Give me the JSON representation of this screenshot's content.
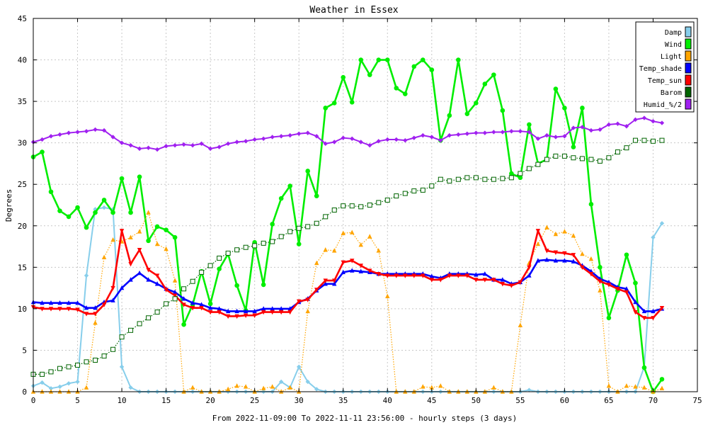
{
  "chart_data": {
    "type": "line",
    "title": "Weather in Essex",
    "xlabel": "From 2022-11-09:00 To 2022-11-11 23:56:00 - hourly steps (3 days)",
    "ylabel": "Degrees",
    "xlim": [
      0,
      75
    ],
    "ylim": [
      0,
      45
    ],
    "xticks": [
      0,
      5,
      10,
      15,
      20,
      25,
      30,
      35,
      40,
      45,
      50,
      55,
      60,
      65,
      70,
      75
    ],
    "yticks": [
      0,
      5,
      10,
      15,
      20,
      25,
      30,
      35,
      40,
      45
    ],
    "grid": true,
    "legend_position": "top-right",
    "x": [
      0,
      1,
      2,
      3,
      4,
      5,
      6,
      7,
      8,
      9,
      10,
      11,
      12,
      13,
      14,
      15,
      16,
      17,
      18,
      19,
      20,
      21,
      22,
      23,
      24,
      25,
      26,
      27,
      28,
      29,
      30,
      31,
      32,
      33,
      34,
      35,
      36,
      37,
      38,
      39,
      40,
      41,
      42,
      43,
      44,
      45,
      46,
      47,
      48,
      49,
      50,
      51,
      52,
      53,
      54,
      55,
      56,
      57,
      58,
      59,
      60,
      61,
      62,
      63,
      64,
      65,
      66,
      67,
      68,
      69,
      70,
      71
    ],
    "series": [
      {
        "name": "Damp",
        "color": "#87ceeb",
        "marker": "diamond",
        "style": "solid",
        "values": [
          0.7,
          1.1,
          0.4,
          0.6,
          1.0,
          1.2,
          14,
          22,
          22.2,
          22,
          3,
          0.5,
          0,
          0,
          0,
          0,
          0,
          0,
          0,
          0,
          0,
          0,
          0,
          0,
          0,
          0,
          0,
          0,
          1.2,
          0.5,
          3,
          1.2,
          0.3,
          0,
          0,
          0,
          0,
          0,
          0,
          0,
          0,
          0,
          0,
          0,
          0,
          0,
          0,
          0,
          0,
          0,
          0,
          0,
          0,
          0,
          0,
          0,
          0.2,
          0,
          0,
          0,
          0,
          0,
          0,
          0,
          0,
          0,
          0,
          0,
          0,
          3,
          18.6,
          20.3
        ]
      },
      {
        "name": "Wind",
        "color": "#00ee00",
        "marker": "circle",
        "style": "solid",
        "values": [
          28.3,
          28.9,
          24.1,
          21.8,
          21.1,
          22.2,
          19.8,
          21.6,
          23.1,
          21.6,
          25.7,
          21.6,
          25.9,
          18.2,
          19.9,
          19.5,
          18.6,
          8.1,
          10.5,
          14.5,
          10.6,
          14.8,
          16.6,
          12.8,
          9.8,
          18,
          12.9,
          20.2,
          23.3,
          24.8,
          17.8,
          26.6,
          23.6,
          34.2,
          34.8,
          37.9,
          34.9,
          40,
          38.2,
          40,
          40,
          36.6,
          35.9,
          39.2,
          40,
          38.8,
          30.3,
          33.3,
          40,
          33.5,
          34.8,
          37.1,
          38.2,
          33.9,
          26.3,
          25.8,
          32.2,
          27.5,
          28,
          36.5,
          34.2,
          29.5,
          34.2,
          22.6,
          15,
          8.9,
          12.2,
          16.5,
          13.1,
          2.9,
          0,
          1.5
        ]
      },
      {
        "name": "Light",
        "color": "#ffa500",
        "marker": "triangle-up",
        "style": "dotted",
        "values": [
          0,
          0,
          0,
          0,
          0,
          0,
          0.5,
          8.3,
          16.2,
          18.3,
          18.1,
          18.6,
          19.3,
          21.6,
          17.8,
          17.2,
          13.4,
          0,
          0.5,
          0,
          0,
          0,
          0.3,
          0.7,
          0.6,
          0,
          0.4,
          0.6,
          0,
          0.5,
          0,
          9.7,
          15.5,
          17.1,
          17,
          19.1,
          19.2,
          17.7,
          18.7,
          17,
          11.5,
          0,
          0,
          0,
          0.6,
          0.5,
          0.7,
          0,
          0,
          0,
          0,
          0,
          0.5,
          0,
          0,
          8,
          15.5,
          17.8,
          19.8,
          19,
          19.3,
          18.8,
          16.6,
          16,
          12.2,
          0.7,
          0,
          0.7,
          0.6,
          0.5,
          0,
          0.4
        ]
      },
      {
        "name": "Temp_shade",
        "color": "#0000ff",
        "marker": "triangle-up",
        "style": "solid",
        "values": [
          10.8,
          10.7,
          10.7,
          10.7,
          10.7,
          10.7,
          10.1,
          10.1,
          10.8,
          11,
          12.5,
          13.5,
          14.3,
          13.5,
          13,
          12.4,
          12,
          11.2,
          10.7,
          10.5,
          10.1,
          10,
          9.7,
          9.7,
          9.7,
          9.7,
          10,
          10,
          10,
          10,
          10.8,
          11.2,
          12.2,
          13,
          13,
          14.4,
          14.6,
          14.5,
          14.4,
          14.2,
          14.2,
          14.2,
          14.2,
          14.2,
          14.2,
          13.9,
          13.7,
          14.2,
          14.2,
          14.2,
          14.1,
          14.2,
          13.5,
          13.5,
          13,
          13.2,
          14,
          15.8,
          15.9,
          15.8,
          15.8,
          15.7,
          15.2,
          14.5,
          13.6,
          13.2,
          12.6,
          12.4,
          10.8,
          9.7,
          9.7,
          10
        ]
      },
      {
        "name": "Temp_sun",
        "color": "#ff0000",
        "marker": "triangle-down",
        "style": "solid",
        "values": [
          10.2,
          10,
          10,
          10,
          10,
          9.9,
          9.4,
          9.4,
          10.5,
          12.5,
          19.4,
          15.4,
          17.1,
          14.7,
          14,
          12.3,
          11.6,
          10.5,
          10.1,
          10.1,
          9.6,
          9.6,
          9.1,
          9.1,
          9.2,
          9.2,
          9.6,
          9.6,
          9.6,
          9.6,
          10.9,
          11.1,
          12.3,
          13.4,
          13.4,
          15.6,
          15.8,
          15.2,
          14.6,
          14.2,
          14,
          14,
          14,
          14,
          14,
          13.5,
          13.5,
          14,
          14,
          14,
          13.5,
          13.5,
          13.5,
          13,
          12.8,
          13.2,
          15,
          19.4,
          17,
          16.8,
          16.7,
          16.5,
          15,
          14.2,
          13.3,
          12.9,
          12.4,
          12,
          9.6,
          8.9,
          8.9,
          10.1
        ]
      },
      {
        "name": "Barom",
        "color": "#006400",
        "marker": "square-open",
        "style": "dotted",
        "values": [
          2.1,
          2.1,
          2.4,
          2.8,
          3,
          3.2,
          3.6,
          3.8,
          4.3,
          5.1,
          6.6,
          7.4,
          8.2,
          8.9,
          9.6,
          10.6,
          11.2,
          12.4,
          13.3,
          14.4,
          15.2,
          16.1,
          16.7,
          17.1,
          17.4,
          17.6,
          17.9,
          18.1,
          18.7,
          19.3,
          19.7,
          19.9,
          20.3,
          21.1,
          21.9,
          22.4,
          22.4,
          22.3,
          22.5,
          22.8,
          23.1,
          23.6,
          23.9,
          24.2,
          24.3,
          24.8,
          25.6,
          25.4,
          25.6,
          25.8,
          25.8,
          25.6,
          25.6,
          25.7,
          25.8,
          26.3,
          26.9,
          27.4,
          28,
          28.4,
          28.4,
          28.2,
          28.1,
          28,
          27.8,
          28.2,
          28.9,
          29.4,
          30.3,
          30.3,
          30.2,
          30.3
        ]
      },
      {
        "name": "Humid_%/2",
        "color": "#a020f0",
        "marker": "diamond",
        "style": "solid",
        "values": [
          30.1,
          30.4,
          30.8,
          31,
          31.2,
          31.3,
          31.4,
          31.6,
          31.5,
          30.7,
          30,
          29.7,
          29.3,
          29.4,
          29.2,
          29.6,
          29.7,
          29.8,
          29.7,
          29.9,
          29.3,
          29.5,
          29.9,
          30.1,
          30.2,
          30.4,
          30.5,
          30.7,
          30.8,
          30.9,
          31.1,
          31.2,
          30.8,
          29.9,
          30.1,
          30.6,
          30.5,
          30.1,
          29.7,
          30.2,
          30.4,
          30.4,
          30.3,
          30.6,
          30.9,
          30.7,
          30.3,
          30.9,
          31,
          31.1,
          31.2,
          31.2,
          31.3,
          31.3,
          31.4,
          31.4,
          31.3,
          30.5,
          30.9,
          30.7,
          30.8,
          31.8,
          31.9,
          31.5,
          31.6,
          32.2,
          32.3,
          32,
          32.8,
          33,
          32.6,
          32.4
        ]
      }
    ]
  }
}
